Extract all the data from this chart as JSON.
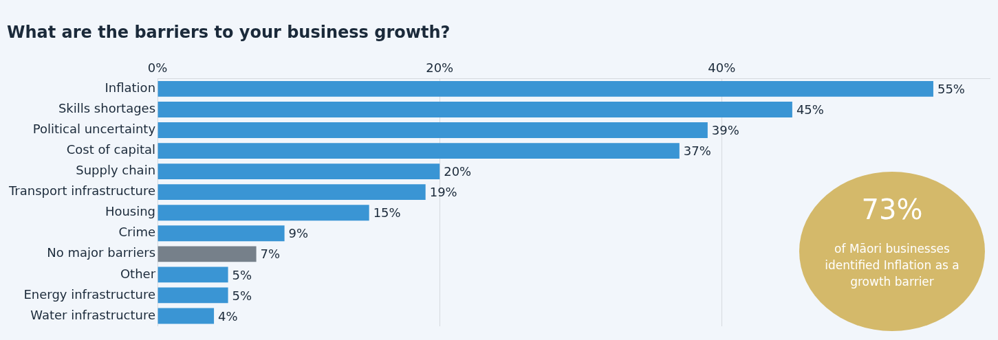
{
  "chart_data": {
    "type": "bar",
    "orientation": "horizontal",
    "title": "What are the barriers to your business growth?",
    "categories": [
      "Inflation",
      "Skills shortages",
      "Political uncertainty",
      "Cost of capital",
      "Supply chain",
      "Transport infrastructure",
      "Housing",
      "Crime",
      "No major barriers",
      "Other",
      "Energy infrastructure",
      "Water infrastructure"
    ],
    "values": [
      55,
      45,
      39,
      37,
      20,
      19,
      15,
      9,
      7,
      5,
      5,
      4
    ],
    "colors": [
      "#3a95d4",
      "#3a95d4",
      "#3a95d4",
      "#3a95d4",
      "#3a95d4",
      "#3a95d4",
      "#3a95d4",
      "#3a95d4",
      "#76808a",
      "#3a95d4",
      "#3a95d4",
      "#3a95d4"
    ],
    "value_labels": [
      "55%",
      "45%",
      "39%",
      "37%",
      "20%",
      "19%",
      "15%",
      "9%",
      "7%",
      "5%",
      "5%",
      "4%"
    ],
    "xlim": [
      0,
      59
    ],
    "xticks": [
      {
        "value": 0,
        "label": "0%"
      },
      {
        "value": 20,
        "label": "20%"
      },
      {
        "value": 40,
        "label": "40%"
      }
    ],
    "grid": "x",
    "legend": false,
    "annotations": [
      "73%",
      "of Māori businesses identified Inflation as a growth barrier"
    ]
  }
}
